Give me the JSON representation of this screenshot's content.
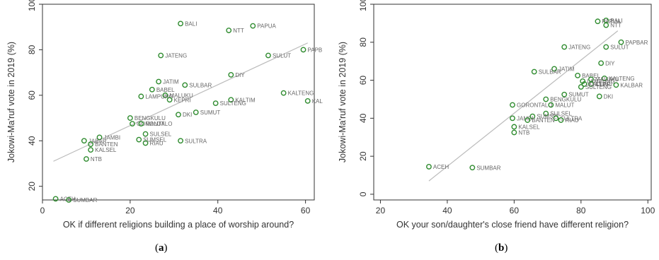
{
  "chart_data": [
    {
      "id": "a",
      "type": "scatter",
      "caption_letter": "a",
      "xlabel": "OK if different religions building a place of worship around?",
      "ylabel": "Jokowi-Ma'ruf vote in 2019 (%)",
      "xlim": [
        0,
        62
      ],
      "ylim": [
        14,
        100
      ],
      "xticks": [
        0,
        20,
        40,
        60
      ],
      "yticks": [
        20,
        40,
        60,
        80,
        100
      ],
      "grid": false,
      "marker_color": "#2e8b2e",
      "fit_line_color": "#bbbbbb",
      "fit_line": [
        [
          2.5,
          31
        ],
        [
          60.5,
          83
        ]
      ],
      "points": [
        {
          "label": "BALI",
          "x": 31.5,
          "y": 91.5
        },
        {
          "label": "PAPUA",
          "x": 48,
          "y": 90.5
        },
        {
          "label": "NTT",
          "x": 42.5,
          "y": 88.5
        },
        {
          "label": "PAPB",
          "x": 59.5,
          "y": 80
        },
        {
          "label": "SULUT",
          "x": 51.5,
          "y": 77.5
        },
        {
          "label": "JATENG",
          "x": 27,
          "y": 77.5
        },
        {
          "label": "DIY",
          "x": 43,
          "y": 69
        },
        {
          "label": "JATIM",
          "x": 26.5,
          "y": 66
        },
        {
          "label": "SULBAR",
          "x": 32.5,
          "y": 64.5
        },
        {
          "label": "BABEL",
          "x": 25,
          "y": 62.5
        },
        {
          "label": "KALTENG",
          "x": 55,
          "y": 61
        },
        {
          "label": "MALUKU",
          "x": 28,
          "y": 60
        },
        {
          "label": "LAMPUNG",
          "x": 22.5,
          "y": 59.5
        },
        {
          "label": "KEPRI",
          "x": 29,
          "y": 58
        },
        {
          "label": "KALTIM",
          "x": 43,
          "y": 58
        },
        {
          "label": "KAL",
          "x": 60.5,
          "y": 57.5
        },
        {
          "label": "SULTENG",
          "x": 39.5,
          "y": 56.5
        },
        {
          "label": "SUMUT",
          "x": 35,
          "y": 52.5
        },
        {
          "label": "DKI",
          "x": 31,
          "y": 51.5
        },
        {
          "label": "BENGKULU",
          "x": 20,
          "y": 50
        },
        {
          "label": "GORONTALO",
          "x": 20.5,
          "y": 47.5
        },
        {
          "label": "MALUT",
          "x": 22.5,
          "y": 47.5
        },
        {
          "label": "SULSEL",
          "x": 23.5,
          "y": 43
        },
        {
          "label": "JAMBI",
          "x": 13,
          "y": 41.5
        },
        {
          "label": "SUMSEL",
          "x": 22,
          "y": 40.5
        },
        {
          "label": "JABAR",
          "x": 9.5,
          "y": 40
        },
        {
          "label": "SULTRA",
          "x": 31.5,
          "y": 40
        },
        {
          "label": "RIAU",
          "x": 23.5,
          "y": 39
        },
        {
          "label": "BANTEN",
          "x": 11,
          "y": 38.5
        },
        {
          "label": "KALSEL",
          "x": 11,
          "y": 36
        },
        {
          "label": "NTB",
          "x": 10,
          "y": 32
        },
        {
          "label": "ACEH",
          "x": 3,
          "y": 14.5
        },
        {
          "label": "SUMBAR",
          "x": 6,
          "y": 14
        }
      ]
    },
    {
      "id": "b",
      "type": "scatter",
      "caption_letter": "b",
      "xlabel": "OK your son/daughter's close friend have different religion?",
      "ylabel": "Jokowi-Ma'ruf vote in 2019 (%)",
      "xlim": [
        18,
        101
      ],
      "ylim": [
        -3,
        100
      ],
      "xticks": [
        20,
        40,
        60,
        80,
        100
      ],
      "yticks": [
        0,
        20,
        40,
        60,
        80,
        100
      ],
      "grid": false,
      "marker_color": "#2e8b2e",
      "fit_line_color": "#bbbbbb",
      "fit_line": [
        [
          34.5,
          7
        ],
        [
          91,
          86
        ]
      ],
      "points": [
        {
          "label": "BALI",
          "x": 87.5,
          "y": 91.5
        },
        {
          "label": "PAPUA",
          "x": 85,
          "y": 91
        },
        {
          "label": "NTT",
          "x": 87.5,
          "y": 89
        },
        {
          "label": "PAPBAR",
          "x": 92,
          "y": 80
        },
        {
          "label": "SULUT",
          "x": 87.5,
          "y": 77.5
        },
        {
          "label": "JATENG",
          "x": 75,
          "y": 77.5
        },
        {
          "label": "DIY",
          "x": 86,
          "y": 69
        },
        {
          "label": "JATIM",
          "x": 72,
          "y": 66
        },
        {
          "label": "SULBAR",
          "x": 66,
          "y": 64.5
        },
        {
          "label": "BABEL",
          "x": 79,
          "y": 62.5
        },
        {
          "label": "KALTENG",
          "x": 87,
          "y": 61
        },
        {
          "label": "MALUKU",
          "x": 83,
          "y": 60.5
        },
        {
          "label": "LAMPUNG",
          "x": 80.5,
          "y": 59.5
        },
        {
          "label": "KEPRI",
          "x": 83,
          "y": 58
        },
        {
          "label": "KALTIM",
          "x": 81,
          "y": 58
        },
        {
          "label": "KALBAR",
          "x": 90.5,
          "y": 57.5
        },
        {
          "label": "SULTENG",
          "x": 80,
          "y": 56.5
        },
        {
          "label": "SUMUT",
          "x": 75,
          "y": 52.5
        },
        {
          "label": "DKI",
          "x": 85.5,
          "y": 51.5
        },
        {
          "label": "BENGKULU",
          "x": 69.5,
          "y": 50
        },
        {
          "label": "GORONTALO",
          "x": 59.5,
          "y": 47
        },
        {
          "label": "MALUT",
          "x": 71,
          "y": 47
        },
        {
          "label": "SULSEL",
          "x": 69.5,
          "y": 42.5
        },
        {
          "label": "JAMBI",
          "x": 59.5,
          "y": 40
        },
        {
          "label": "SUMSEL",
          "x": 65.5,
          "y": 41
        },
        {
          "label": "SULTRA",
          "x": 72.5,
          "y": 40
        },
        {
          "label": "RIAU",
          "x": 74,
          "y": 39
        },
        {
          "label": "BANTEN",
          "x": 64,
          "y": 39
        },
        {
          "label": "KALSEL",
          "x": 60,
          "y": 35.5
        },
        {
          "label": "NTB",
          "x": 60,
          "y": 32.5
        },
        {
          "label": "ACEH",
          "x": 34.5,
          "y": 14.5
        },
        {
          "label": "SUMBAR",
          "x": 47.5,
          "y": 14
        }
      ]
    }
  ]
}
